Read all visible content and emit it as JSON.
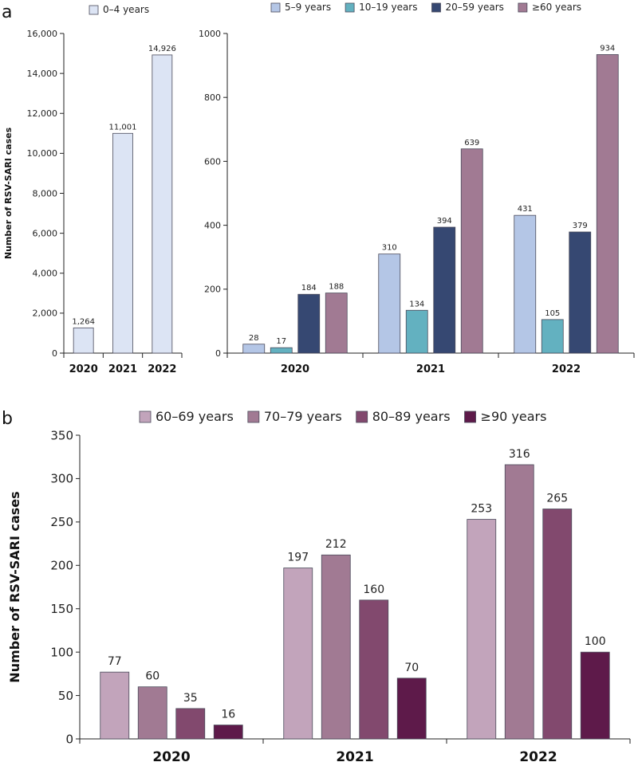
{
  "chart_data": [
    {
      "panel": "a",
      "type": "bar",
      "title": "",
      "xlabel": "",
      "ylabel": "Number of RSV-SARI cases",
      "categories": [
        "2020",
        "2021",
        "2022"
      ],
      "ylim": [
        0,
        16000
      ],
      "yticks": [
        "0",
        "2,000",
        "4,000",
        "6,000",
        "8,000",
        "10,000",
        "12,000",
        "14,000",
        "16,000"
      ],
      "series": [
        {
          "name": "0–4 years",
          "color": "#dce4f4",
          "values": [
            1264,
            11001,
            14926
          ],
          "labels": [
            "1,264",
            "11,001",
            "14,926"
          ]
        }
      ]
    },
    {
      "panel": "a",
      "type": "bar",
      "title": "",
      "xlabel": "",
      "ylabel": "",
      "categories": [
        "2020",
        "2021",
        "2022"
      ],
      "ylim": [
        0,
        1000
      ],
      "yticks": [
        "0",
        "200",
        "400",
        "600",
        "800",
        "1000"
      ],
      "series": [
        {
          "name": "5–9 years",
          "color": "#b4c6e6",
          "values": [
            28,
            310,
            431
          ]
        },
        {
          "name": "10–19 years",
          "color": "#63b1c0",
          "values": [
            17,
            134,
            105
          ]
        },
        {
          "name": "20–59 years",
          "color": "#364872",
          "values": [
            184,
            394,
            379
          ]
        },
        {
          "name": "≥60 years",
          "color": "#a17a93",
          "values": [
            188,
            639,
            934
          ]
        }
      ]
    },
    {
      "panel": "b",
      "type": "bar",
      "title": "",
      "xlabel": "",
      "ylabel": "Number of RSV-SARI cases",
      "categories": [
        "2020",
        "2021",
        "2022"
      ],
      "ylim": [
        0,
        350
      ],
      "yticks": [
        "0",
        "50",
        "100",
        "150",
        "200",
        "250",
        "300",
        "350"
      ],
      "series": [
        {
          "name": "60–69 years",
          "color": "#c2a4bb",
          "values": [
            77,
            197,
            253
          ]
        },
        {
          "name": "70–79 years",
          "color": "#a17a93",
          "values": [
            60,
            212,
            316
          ]
        },
        {
          "name": "80–89 years",
          "color": "#82496e",
          "values": [
            35,
            160,
            265
          ]
        },
        {
          "name": "≥90 years",
          "color": "#5e1a4a",
          "values": [
            16,
            70,
            100
          ]
        }
      ]
    }
  ],
  "panels": {
    "a": "a",
    "b": "b"
  }
}
